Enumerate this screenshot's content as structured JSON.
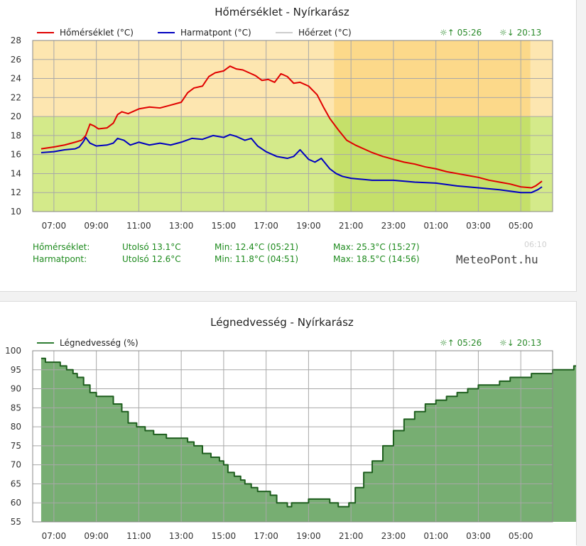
{
  "temp_panel": {
    "title": "Hőmérséklet - Nyírkarász",
    "legend": [
      {
        "label": "Hőmérséklet (°C)",
        "color": "#e00000"
      },
      {
        "label": "Harmatpont (°C)",
        "color": "#0000c0"
      },
      {
        "label": "Hőérzet (°C)",
        "color": "#cccccc"
      }
    ],
    "sunrise": "☼↑ 05:26",
    "sunset": "☼↓ 20:13",
    "stats": [
      {
        "name": "Hőmérséklet:",
        "last": "Utolsó 13.1°C",
        "min": "Min: 12.4°C (05:21)",
        "max": "Max: 25.3°C (15:27)"
      },
      {
        "name": "Harmatpont:",
        "last": "Utolsó 12.6°C",
        "min": "Min: 11.8°C (04:51)",
        "max": "Max: 18.5°C (14:56)"
      }
    ],
    "timestamp": "06:10",
    "brand": "MeteoPont.hu"
  },
  "hum_panel": {
    "title": "Légnedvesség - Nyírkarász",
    "legend": [
      {
        "label": "Légnedvesség (%)",
        "color": "#2e7d32"
      }
    ],
    "sunrise": "☼↑ 05:26",
    "sunset": "☼↓ 20:13"
  },
  "colors": {
    "warm_zone": "#fde6b0",
    "warm_zone_night": "#fcd98a",
    "mild_zone": "#d4ea8a",
    "mild_zone_night": "#c5e06a",
    "humidity_fill": "#77ae72",
    "humidity_line": "#1e5e1e"
  },
  "chart_data": [
    {
      "type": "line",
      "title": "Hőmérséklet - Nyírkarász",
      "x_unit": "hours elapsed (tick labels show clock time)",
      "x_tick_labels": [
        "07:00",
        "09:00",
        "11:00",
        "13:00",
        "15:00",
        "17:00",
        "19:00",
        "21:00",
        "23:00",
        "01:00",
        "03:00",
        "05:00"
      ],
      "ylim": [
        10,
        28
      ],
      "yticks": [
        10,
        12,
        14,
        16,
        18,
        20,
        22,
        24,
        26,
        28
      ],
      "series": [
        {
          "name": "Hőmérséklet (°C)",
          "color": "#e00000",
          "points": [
            [
              -0.6,
              16.6
            ],
            [
              0,
              16.8
            ],
            [
              0.5,
              17.0
            ],
            [
              1,
              17.3
            ],
            [
              1.3,
              17.5
            ],
            [
              1.5,
              18.0
            ],
            [
              1.7,
              19.2
            ],
            [
              1.9,
              19.0
            ],
            [
              2.1,
              18.7
            ],
            [
              2.5,
              18.8
            ],
            [
              2.8,
              19.3
            ],
            [
              3,
              20.2
            ],
            [
              3.2,
              20.5
            ],
            [
              3.5,
              20.3
            ],
            [
              4,
              20.8
            ],
            [
              4.5,
              21.0
            ],
            [
              5,
              20.9
            ],
            [
              5.5,
              21.2
            ],
            [
              6,
              21.5
            ],
            [
              6.3,
              22.5
            ],
            [
              6.6,
              23.0
            ],
            [
              7,
              23.2
            ],
            [
              7.3,
              24.2
            ],
            [
              7.6,
              24.6
            ],
            [
              8,
              24.8
            ],
            [
              8.3,
              25.3
            ],
            [
              8.6,
              25.0
            ],
            [
              8.9,
              24.9
            ],
            [
              9.2,
              24.6
            ],
            [
              9.5,
              24.3
            ],
            [
              9.8,
              23.8
            ],
            [
              10.1,
              23.9
            ],
            [
              10.4,
              23.6
            ],
            [
              10.7,
              24.5
            ],
            [
              11,
              24.2
            ],
            [
              11.3,
              23.5
            ],
            [
              11.6,
              23.6
            ],
            [
              12,
              23.2
            ],
            [
              12.4,
              22.3
            ],
            [
              12.7,
              21.0
            ],
            [
              13,
              19.8
            ],
            [
              13.4,
              18.6
            ],
            [
              13.8,
              17.5
            ],
            [
              14.2,
              17.0
            ],
            [
              14.6,
              16.6
            ],
            [
              15,
              16.2
            ],
            [
              15.5,
              15.8
            ],
            [
              16,
              15.5
            ],
            [
              16.5,
              15.2
            ],
            [
              17,
              15.0
            ],
            [
              17.5,
              14.7
            ],
            [
              18,
              14.5
            ],
            [
              18.5,
              14.2
            ],
            [
              19,
              14.0
            ],
            [
              19.5,
              13.8
            ],
            [
              20,
              13.6
            ],
            [
              20.5,
              13.3
            ],
            [
              21,
              13.1
            ],
            [
              21.5,
              12.9
            ],
            [
              22,
              12.6
            ],
            [
              22.5,
              12.5
            ],
            [
              22.7,
              12.7
            ],
            [
              23,
              13.2
            ]
          ]
        },
        {
          "name": "Harmatpont (°C)",
          "color": "#0000c0",
          "points": [
            [
              -0.6,
              16.2
            ],
            [
              0,
              16.3
            ],
            [
              0.5,
              16.5
            ],
            [
              1,
              16.6
            ],
            [
              1.2,
              16.8
            ],
            [
              1.4,
              17.4
            ],
            [
              1.5,
              17.8
            ],
            [
              1.7,
              17.2
            ],
            [
              2,
              16.9
            ],
            [
              2.5,
              17.0
            ],
            [
              2.8,
              17.2
            ],
            [
              3,
              17.7
            ],
            [
              3.3,
              17.5
            ],
            [
              3.6,
              17.0
            ],
            [
              4,
              17.3
            ],
            [
              4.5,
              17.0
            ],
            [
              5,
              17.2
            ],
            [
              5.5,
              17.0
            ],
            [
              6,
              17.3
            ],
            [
              6.5,
              17.7
            ],
            [
              7,
              17.6
            ],
            [
              7.5,
              18.0
            ],
            [
              8,
              17.8
            ],
            [
              8.3,
              18.1
            ],
            [
              8.6,
              17.9
            ],
            [
              9,
              17.5
            ],
            [
              9.3,
              17.7
            ],
            [
              9.6,
              16.9
            ],
            [
              10,
              16.3
            ],
            [
              10.5,
              15.8
            ],
            [
              11,
              15.6
            ],
            [
              11.3,
              15.8
            ],
            [
              11.6,
              16.5
            ],
            [
              11.8,
              16.0
            ],
            [
              12,
              15.5
            ],
            [
              12.3,
              15.2
            ],
            [
              12.6,
              15.6
            ],
            [
              13,
              14.5
            ],
            [
              13.3,
              14.0
            ],
            [
              13.6,
              13.7
            ],
            [
              14,
              13.5
            ],
            [
              15,
              13.3
            ],
            [
              16,
              13.3
            ],
            [
              17,
              13.1
            ],
            [
              18,
              13.0
            ],
            [
              19,
              12.7
            ],
            [
              20,
              12.5
            ],
            [
              21,
              12.3
            ],
            [
              22,
              12.0
            ],
            [
              22.5,
              12.0
            ],
            [
              22.8,
              12.3
            ],
            [
              23,
              12.6
            ]
          ]
        }
      ],
      "shading": [
        {
          "from": 13.2,
          "to": 22.45,
          "label": "night"
        }
      ],
      "zones": [
        {
          "from": 10,
          "to": 20
        },
        {
          "from": 20,
          "to": 28
        }
      ]
    },
    {
      "type": "area",
      "title": "Légnedvesség - Nyírkarász",
      "x_unit": "hours elapsed (tick labels show clock time)",
      "x_tick_labels": [
        "07:00",
        "09:00",
        "11:00",
        "13:00",
        "15:00",
        "17:00",
        "19:00",
        "21:00",
        "23:00",
        "01:00",
        "03:00",
        "05:00"
      ],
      "ylim": [
        55,
        100
      ],
      "yticks": [
        55,
        60,
        65,
        70,
        75,
        80,
        85,
        90,
        95,
        100
      ],
      "series": [
        {
          "name": "Légnedvesség (%)",
          "color": "#77ae72",
          "points": [
            [
              -0.6,
              98
            ],
            [
              -0.4,
              97
            ],
            [
              0,
              97
            ],
            [
              0.3,
              96
            ],
            [
              0.6,
              95
            ],
            [
              0.9,
              94
            ],
            [
              1.1,
              93
            ],
            [
              1.4,
              91
            ],
            [
              1.7,
              89
            ],
            [
              2,
              88
            ],
            [
              2.4,
              88
            ],
            [
              2.8,
              86
            ],
            [
              3.2,
              84
            ],
            [
              3.5,
              81
            ],
            [
              3.9,
              80
            ],
            [
              4.3,
              79
            ],
            [
              4.7,
              78
            ],
            [
              5,
              78
            ],
            [
              5.3,
              77
            ],
            [
              6,
              77
            ],
            [
              6.3,
              76
            ],
            [
              6.6,
              75
            ],
            [
              7,
              73
            ],
            [
              7.4,
              72
            ],
            [
              7.8,
              71
            ],
            [
              8,
              70
            ],
            [
              8.2,
              68
            ],
            [
              8.5,
              67
            ],
            [
              8.8,
              66
            ],
            [
              9,
              65
            ],
            [
              9.3,
              64
            ],
            [
              9.6,
              63
            ],
            [
              10,
              63
            ],
            [
              10.2,
              62
            ],
            [
              10.5,
              60
            ],
            [
              10.8,
              60
            ],
            [
              11,
              59
            ],
            [
              11.2,
              60
            ],
            [
              11.5,
              60
            ],
            [
              12,
              61
            ],
            [
              12.6,
              61
            ],
            [
              13,
              60
            ],
            [
              13.4,
              59
            ],
            [
              13.6,
              59
            ],
            [
              13.9,
              60
            ],
            [
              14.2,
              64
            ],
            [
              14.6,
              68
            ],
            [
              15,
              71
            ],
            [
              15.5,
              75
            ],
            [
              16,
              79
            ],
            [
              16.5,
              82
            ],
            [
              17,
              84
            ],
            [
              17.5,
              86
            ],
            [
              18,
              87
            ],
            [
              18.5,
              88
            ],
            [
              19,
              89
            ],
            [
              19.5,
              90
            ],
            [
              20,
              91
            ],
            [
              20.5,
              91
            ],
            [
              21,
              92
            ],
            [
              21.5,
              93
            ],
            [
              22,
              93
            ],
            [
              22.5,
              94
            ],
            [
              23,
              94
            ],
            [
              23.5,
              95
            ],
            [
              24,
              95
            ],
            [
              24.5,
              96
            ],
            [
              25,
              96
            ],
            [
              25.3,
              97
            ],
            [
              25.6,
              97
            ]
          ]
        }
      ]
    }
  ]
}
